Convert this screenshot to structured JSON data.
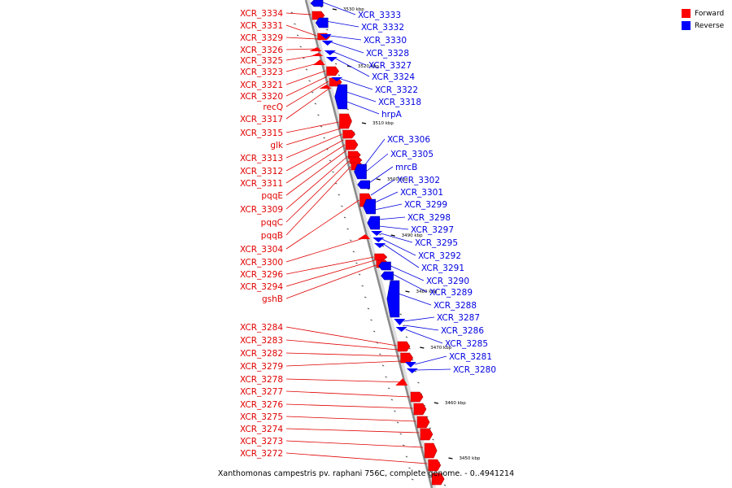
{
  "caption": "Xanthomonas campestris pv. raphani 756C, complete genome. - 0..4941214",
  "legend": {
    "forward_label": "Forward",
    "reverse_label": "Reverse",
    "forward_color": "#ff0000",
    "reverse_color": "#0000ff"
  },
  "ticks": [
    "3530 kbp",
    "3520 kbp",
    "3510 kbp",
    "3500 kbp",
    "3490 kbp",
    "3480 kbp",
    "3470 kbp",
    "3460 kbp",
    "3450 kbp"
  ],
  "forward_genes": [
    "XCR_3334",
    "XCR_3331",
    "XCR_3329",
    "XCR_3326",
    "XCR_3325",
    "XCR_3323",
    "XCR_3321",
    "XCR_3320",
    "recQ",
    "XCR_3317",
    "XCR_3315",
    "glk",
    "XCR_3313",
    "XCR_3312",
    "XCR_3311",
    "pqqE",
    "XCR_3309",
    "pqqC",
    "pqqB",
    "XCR_3304",
    "XCR_3300",
    "XCR_3296",
    "XCR_3294",
    "gshB",
    "XCR_3284",
    "XCR_3283",
    "XCR_3282",
    "XCR_3279",
    "XCR_3278",
    "XCR_3277",
    "XCR_3276",
    "XCR_3275",
    "XCR_3274",
    "XCR_3273",
    "XCR_3272"
  ],
  "reverse_genes": [
    "XCR_3333",
    "XCR_3332",
    "XCR_3330",
    "XCR_3328",
    "XCR_3327",
    "XCR_3324",
    "XCR_3322",
    "XCR_3318",
    "hrpA",
    "XCR_3306",
    "XCR_3305",
    "mrcB",
    "XCR_3302",
    "XCR_3301",
    "XCR_3299",
    "XCR_3298",
    "XCR_3297",
    "XCR_3295",
    "XCR_3292",
    "XCR_3291",
    "XCR_3290",
    "XCR_3289",
    "XCR_3288",
    "XCR_3287",
    "XCR_3286",
    "XCR_3285",
    "XCR_3281",
    "XCR_3280"
  ]
}
